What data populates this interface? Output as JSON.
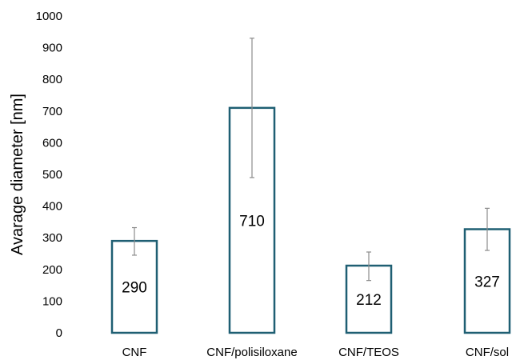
{
  "chart_data": {
    "type": "bar",
    "title": "",
    "xlabel": "",
    "ylabel": "Avarage  diameter [nm]",
    "ylim": [
      0,
      1000
    ],
    "yticks": [
      0,
      100,
      200,
      300,
      400,
      500,
      600,
      700,
      800,
      900,
      1000
    ],
    "categories": [
      "CNF",
      "CNF/polisiloxane",
      "CNF/TEOS",
      "CNF/sol"
    ],
    "values": [
      290,
      710,
      212,
      327
    ],
    "error_low": [
      245,
      490,
      165,
      260
    ],
    "error_high": [
      332,
      930,
      255,
      393
    ],
    "data_labels": [
      "290",
      "710",
      "212",
      "327"
    ],
    "grid": false,
    "legend": "none",
    "colors": {
      "bar_stroke": "#1f5f73",
      "bar_fill": "#ffffff",
      "error_bar": "#8c8c8c"
    }
  }
}
